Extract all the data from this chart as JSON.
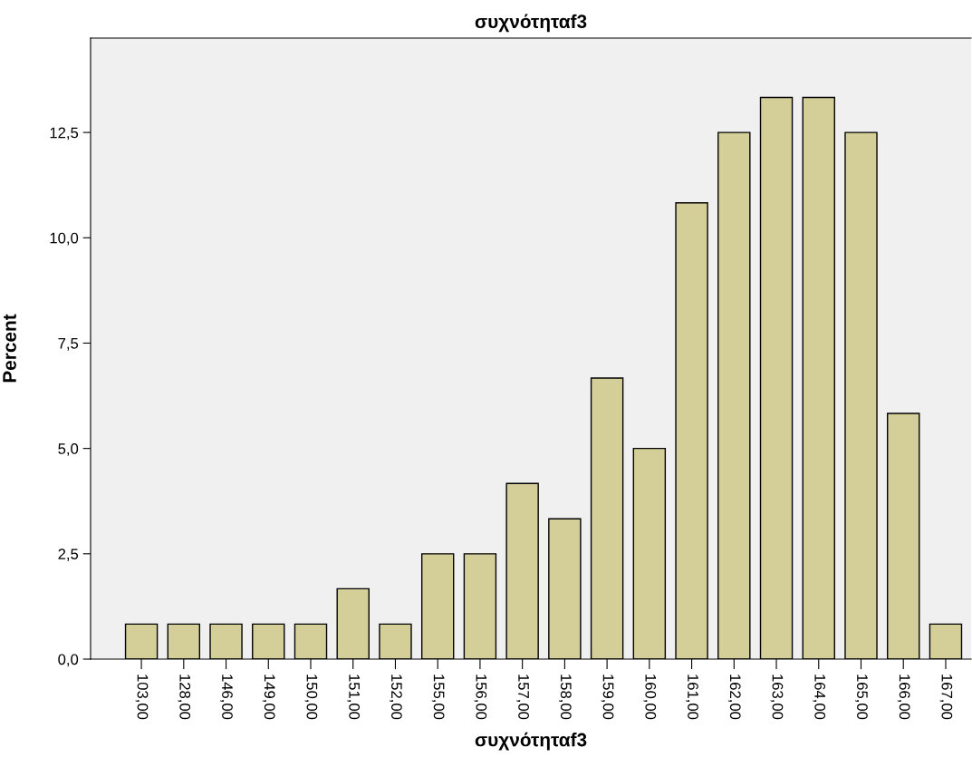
{
  "chart_data": {
    "type": "bar",
    "title": "συχνότηταf3",
    "xlabel": "συχνότηταf3",
    "ylabel": "Percent",
    "categories": [
      "103,00",
      "128,00",
      "146,00",
      "149,00",
      "150,00",
      "151,00",
      "152,00",
      "155,00",
      "156,00",
      "157,00",
      "158,00",
      "159,00",
      "160,00",
      "161,00",
      "162,00",
      "163,00",
      "164,00",
      "165,00",
      "166,00",
      "167,00"
    ],
    "values": [
      0.83,
      0.83,
      0.83,
      0.83,
      0.83,
      1.67,
      0.83,
      2.5,
      2.5,
      4.17,
      3.33,
      6.67,
      5.0,
      10.83,
      12.5,
      13.33,
      13.33,
      12.5,
      5.83,
      0.83
    ],
    "color": "#d4cf99",
    "ylim": [
      0,
      14.74
    ],
    "yticks": [
      {
        "value": 0,
        "label": "0,0"
      },
      {
        "value": 2.5,
        "label": "2,5"
      },
      {
        "value": 5,
        "label": "5,0"
      },
      {
        "value": 7.5,
        "label": "7,5"
      },
      {
        "value": 10,
        "label": "10,0"
      },
      {
        "value": 12.5,
        "label": "12,5"
      }
    ],
    "grid": false
  }
}
